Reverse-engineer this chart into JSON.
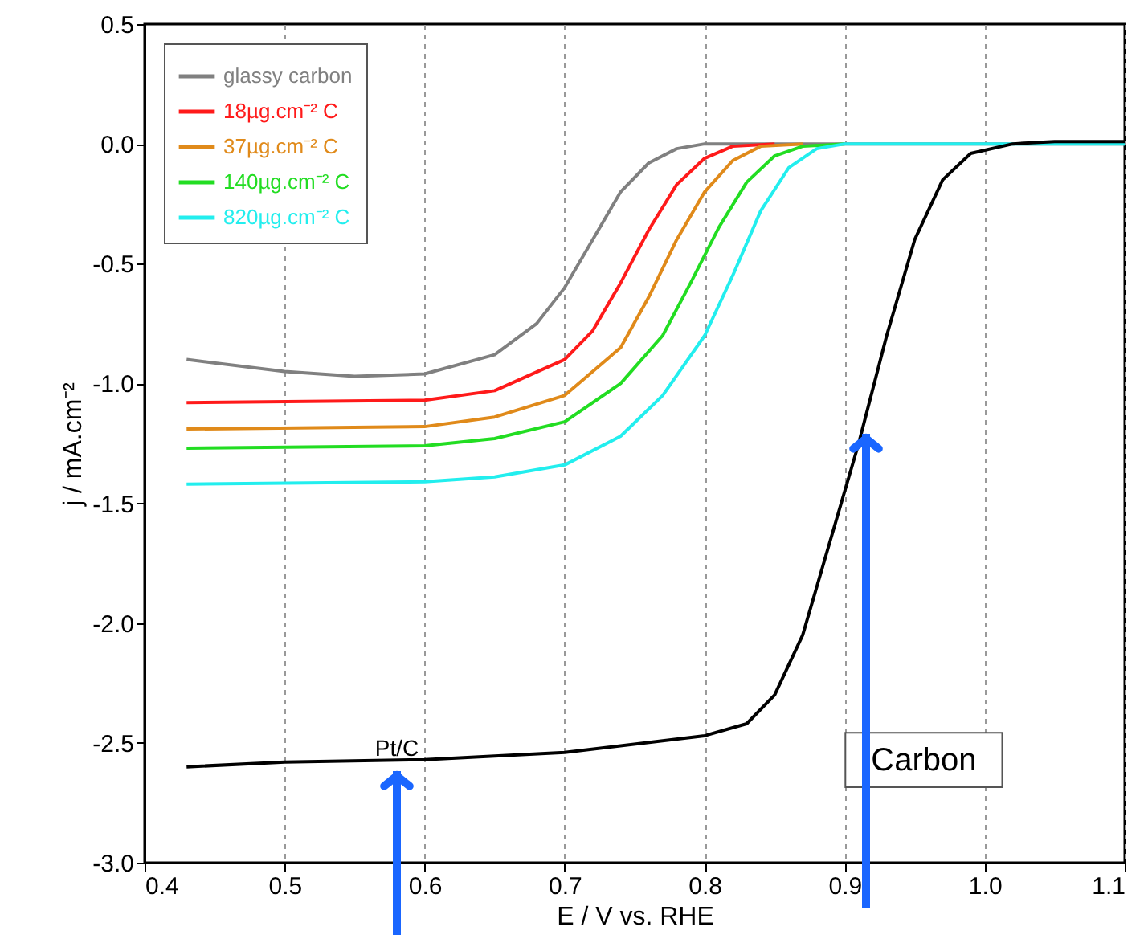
{
  "chart_data": {
    "type": "line",
    "xlabel": "E / V vs. RHE",
    "ylabel": "j / mA.cm⁻²",
    "xlim": [
      0.4,
      1.1
    ],
    "xticks": [
      0.4,
      0.5,
      0.6,
      0.7,
      0.8,
      0.9,
      {
        "value": 1.0,
        "label": "1.0"
      },
      1.1
    ],
    "ylim": [
      -3.0,
      0.5
    ],
    "yticks": [
      {
        "value": -3.0,
        "label": "-3.0"
      },
      -2.5,
      {
        "value": -2.0,
        "label": "-2.0"
      },
      -1.5,
      {
        "value": -1.0,
        "label": "-1.0"
      },
      -0.5,
      {
        "value": 0.0,
        "label": "0.0"
      },
      0.5
    ],
    "grid": "x",
    "legend": "top left",
    "marker": "none",
    "line_style": "solid",
    "annotations": [
      "Pt/C",
      "Carbon"
    ],
    "series": [
      {
        "name": "glassy carbon",
        "color": "#808080",
        "x": [
          0.43,
          0.5,
          0.55,
          0.6,
          0.65,
          0.68,
          0.7,
          0.72,
          0.74,
          0.76,
          0.78,
          0.8,
          0.9,
          1.0,
          1.1
        ],
        "values": [
          -0.9,
          -0.95,
          -0.97,
          -0.96,
          -0.88,
          -0.75,
          -0.6,
          -0.4,
          -0.2,
          -0.08,
          -0.02,
          0,
          0,
          0,
          0
        ]
      },
      {
        "name": "18µg.cm⁻² C",
        "color": "#ff1a1a",
        "x": [
          0.43,
          0.6,
          0.65,
          0.7,
          0.72,
          0.74,
          0.76,
          0.78,
          0.8,
          0.82,
          0.85
        ],
        "values": [
          -1.08,
          -1.07,
          -1.03,
          -0.9,
          -0.78,
          -0.58,
          -0.36,
          -0.17,
          -0.06,
          -0.01,
          0
        ]
      },
      {
        "name": "37µg.cm⁻² C",
        "color": "#e08a1a",
        "x": [
          0.43,
          0.6,
          0.65,
          0.7,
          0.74,
          0.76,
          0.78,
          0.8,
          0.82,
          0.84,
          0.87
        ],
        "values": [
          -1.19,
          -1.18,
          -1.14,
          -1.05,
          -0.85,
          -0.64,
          -0.4,
          -0.2,
          -0.07,
          -0.01,
          0
        ]
      },
      {
        "name": "140µg.cm⁻² C",
        "color": "#22dd22",
        "x": [
          0.43,
          0.6,
          0.65,
          0.7,
          0.74,
          0.77,
          0.79,
          0.81,
          0.83,
          0.85,
          0.87,
          0.9
        ],
        "values": [
          -1.27,
          -1.26,
          -1.23,
          -1.16,
          -1.0,
          -0.8,
          -0.58,
          -0.35,
          -0.16,
          -0.05,
          -0.01,
          0
        ]
      },
      {
        "name": "820µg.cm⁻² C",
        "color": "#22eeee",
        "x": [
          0.43,
          0.6,
          0.65,
          0.7,
          0.74,
          0.77,
          0.8,
          0.82,
          0.84,
          0.86,
          0.88,
          0.9,
          1.0,
          1.1
        ],
        "values": [
          -1.42,
          -1.41,
          -1.39,
          -1.34,
          -1.22,
          -1.05,
          -0.8,
          -0.55,
          -0.28,
          -0.1,
          -0.02,
          0,
          0,
          0
        ]
      },
      {
        "color": "#000000",
        "x": [
          0.43,
          0.5,
          0.6,
          0.7,
          0.8,
          0.83,
          0.85,
          0.87,
          0.89,
          0.91,
          0.93,
          0.95,
          0.97,
          0.99,
          1.02,
          1.05,
          1.1
        ],
        "values": [
          -2.6,
          -2.58,
          -2.57,
          -2.54,
          -2.47,
          -2.42,
          -2.3,
          -2.05,
          -1.65,
          -1.25,
          -0.8,
          -0.4,
          -0.15,
          -0.04,
          0,
          0.01,
          0.01
        ]
      }
    ]
  }
}
